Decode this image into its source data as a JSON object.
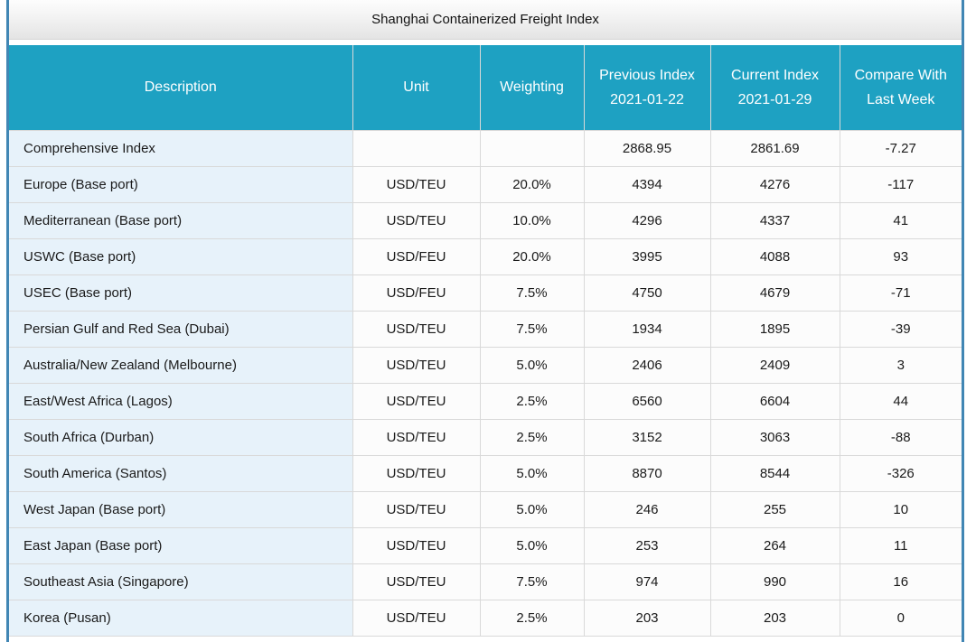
{
  "title": "Shanghai Containerized Freight Index",
  "colors": {
    "header_bg": "#1ea1c2",
    "header_text": "#ffffff",
    "description_cell_bg": "#e7f2fa",
    "cell_border": "#d9d9d9",
    "panel_border": "#4186b4"
  },
  "table": {
    "columns": [
      "Description",
      "Unit",
      "Weighting",
      "Previous Index\n2021-01-22",
      "Current Index\n2021-01-29",
      "Compare With\nLast Week"
    ],
    "fields": [
      "description",
      "unit",
      "weighting",
      "previous",
      "current",
      "compare"
    ],
    "rows": [
      {
        "description": "Comprehensive Index",
        "unit": "",
        "weighting": "",
        "previous": "2868.95",
        "current": "2861.69",
        "compare": "-7.27"
      },
      {
        "description": "Europe (Base port)",
        "unit": "USD/TEU",
        "weighting": "20.0%",
        "previous": "4394",
        "current": "4276",
        "compare": "-117"
      },
      {
        "description": "Mediterranean (Base port)",
        "unit": "USD/TEU",
        "weighting": "10.0%",
        "previous": "4296",
        "current": "4337",
        "compare": "41"
      },
      {
        "description": "USWC (Base port)",
        "unit": "USD/FEU",
        "weighting": "20.0%",
        "previous": "3995",
        "current": "4088",
        "compare": "93"
      },
      {
        "description": "USEC (Base port)",
        "unit": "USD/FEU",
        "weighting": "7.5%",
        "previous": "4750",
        "current": "4679",
        "compare": "-71"
      },
      {
        "description": "Persian Gulf and Red Sea (Dubai)",
        "unit": "USD/TEU",
        "weighting": "7.5%",
        "previous": "1934",
        "current": "1895",
        "compare": "-39"
      },
      {
        "description": "Australia/New Zealand (Melbourne)",
        "unit": "USD/TEU",
        "weighting": "5.0%",
        "previous": "2406",
        "current": "2409",
        "compare": "3"
      },
      {
        "description": "East/West Africa (Lagos)",
        "unit": "USD/TEU",
        "weighting": "2.5%",
        "previous": "6560",
        "current": "6604",
        "compare": "44"
      },
      {
        "description": "South Africa (Durban)",
        "unit": "USD/TEU",
        "weighting": "2.5%",
        "previous": "3152",
        "current": "3063",
        "compare": "-88"
      },
      {
        "description": "South America (Santos)",
        "unit": "USD/TEU",
        "weighting": "5.0%",
        "previous": "8870",
        "current": "8544",
        "compare": "-326"
      },
      {
        "description": "West Japan (Base port)",
        "unit": "USD/TEU",
        "weighting": "5.0%",
        "previous": "246",
        "current": "255",
        "compare": "10"
      },
      {
        "description": "East Japan (Base port)",
        "unit": "USD/TEU",
        "weighting": "5.0%",
        "previous": "253",
        "current": "264",
        "compare": "11"
      },
      {
        "description": "Southeast Asia (Singapore)",
        "unit": "USD/TEU",
        "weighting": "7.5%",
        "previous": "974",
        "current": "990",
        "compare": "16"
      },
      {
        "description": "Korea (Pusan)",
        "unit": "USD/TEU",
        "weighting": "2.5%",
        "previous": "203",
        "current": "203",
        "compare": "0"
      }
    ]
  }
}
